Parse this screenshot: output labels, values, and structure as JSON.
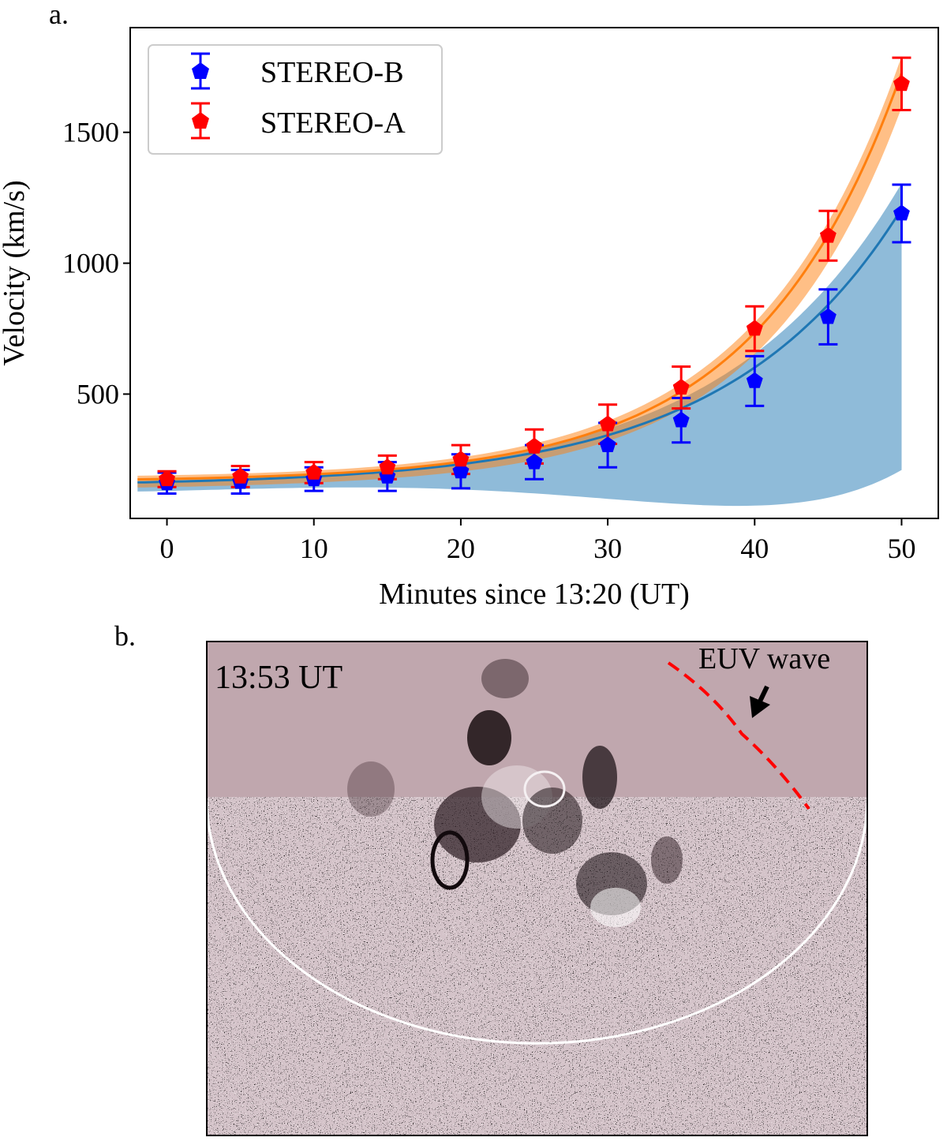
{
  "panels": {
    "a_label": "a.",
    "b_label": "b."
  },
  "chart_data": {
    "type": "scatter",
    "title": "",
    "xlabel": "Minutes since 13:20 (UT)",
    "ylabel": "Velocity (km/s)",
    "xlim": [
      -2.5,
      52.5
    ],
    "ylim": [
      25,
      1900
    ],
    "xticks": [
      0,
      10,
      20,
      30,
      40,
      50
    ],
    "yticks": [
      500,
      1000,
      1500
    ],
    "grid": false,
    "legend_position": "top-left",
    "x": [
      0,
      5,
      10,
      15,
      20,
      25,
      30,
      35,
      40,
      45,
      50
    ],
    "series": [
      {
        "name": "STEREO-B",
        "marker_color": "#0000ff",
        "values": [
          160,
          165,
          175,
          185,
          205,
          240,
          305,
          400,
          550,
          795,
          1190
        ],
        "errors": [
          40,
          45,
          45,
          55,
          65,
          65,
          85,
          85,
          95,
          105,
          110
        ]
      },
      {
        "name": "STEREO-A",
        "marker_color": "#ff0000",
        "values": [
          175,
          185,
          200,
          220,
          250,
          300,
          385,
          525,
          750,
          1105,
          1685
        ],
        "errors": [
          30,
          40,
          40,
          45,
          55,
          65,
          75,
          80,
          85,
          95,
          100
        ]
      }
    ],
    "fits": [
      {
        "name": "STEREO-B fit",
        "color": "#1f77b4",
        "band_color": "#1f77b4",
        "a": 150,
        "b": 15,
        "tau": 11.75,
        "band_lower": [
          130,
          210
        ],
        "band_upper": [
          170,
          1305
        ]
      },
      {
        "name": "STEREO-A fit",
        "color": "#ff7f0e",
        "band_color": "#ff7f0e",
        "a": 166,
        "b": 10,
        "tau": 9.9,
        "band_lower": [
          145,
          1595
        ],
        "band_upper": [
          190,
          1790
        ]
      }
    ]
  },
  "image_panel": {
    "time_label": "13:53 UT",
    "annotation": "EUV wave",
    "wave_color": "#ff0000",
    "limb_color": "#ffffff",
    "background_color": "#b08f98"
  }
}
